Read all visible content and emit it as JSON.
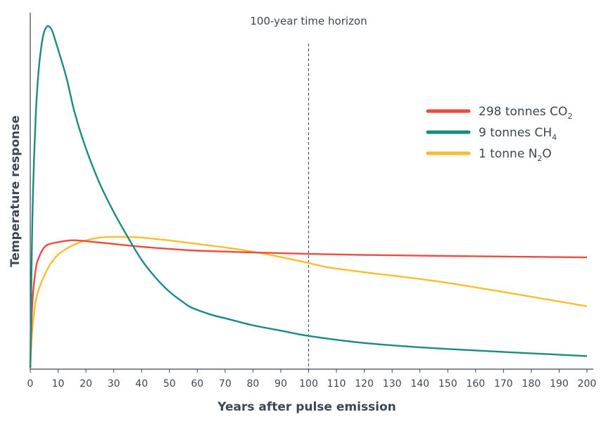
{
  "chart_data": {
    "type": "line",
    "title": "",
    "annotation": "100-year time horizon",
    "annotation_x": 100,
    "xlabel": "Years after pulse emission",
    "ylabel": "Temperature response",
    "xlim": [
      0,
      200
    ],
    "ylim": [
      0,
      100
    ],
    "xticks": [
      0,
      10,
      20,
      30,
      40,
      50,
      60,
      70,
      80,
      90,
      100,
      110,
      120,
      130,
      140,
      150,
      160,
      170,
      180,
      190,
      200
    ],
    "grid": false,
    "legend_position": "top-right",
    "series": [
      {
        "name": "298 tonnes CO",
        "sub": "2",
        "color": "#f04a3e",
        "x": [
          0,
          0.5,
          1,
          2,
          3,
          5,
          7,
          10,
          14,
          17,
          20,
          30,
          40,
          50,
          60,
          80,
          100,
          120,
          150,
          200
        ],
        "y": [
          0,
          14,
          21,
          28,
          31,
          34,
          35,
          35.5,
          36,
          36,
          35.8,
          35,
          34.2,
          33.6,
          33.1,
          32.6,
          32.2,
          31.9,
          31.6,
          31.2
        ]
      },
      {
        "name": "9 tonnes CH",
        "sub": "4",
        "color": "#1a8c7e",
        "x": [
          0,
          0.5,
          1,
          2,
          3,
          4,
          5,
          6,
          6.5,
          7,
          8,
          10,
          13,
          16,
          20,
          25,
          30,
          35,
          40,
          45,
          50,
          55,
          58,
          65,
          70,
          80,
          90,
          100,
          120,
          150,
          200
        ],
        "y": [
          0,
          30,
          50,
          72,
          84,
          91,
          95,
          96.5,
          96.6,
          96.3,
          95,
          90,
          82,
          72,
          62,
          52,
          44,
          37,
          30.5,
          25.5,
          21.5,
          18.5,
          17,
          15,
          14,
          12,
          10.5,
          9,
          7,
          5.3,
          3.3
        ]
      },
      {
        "name": "1 tonne N",
        "sub": "2",
        "suffix": "O",
        "color": "#fbbd2e",
        "x": [
          0,
          0.5,
          1,
          2,
          3,
          5,
          7,
          10,
          15,
          20,
          25,
          30,
          35,
          40,
          50,
          60,
          70,
          80,
          90,
          100,
          107,
          120,
          150,
          200
        ],
        "y": [
          0,
          8,
          13,
          19,
          22,
          26,
          29,
          32,
          34.5,
          36,
          36.8,
          37,
          37,
          36.8,
          36,
          35,
          34,
          32.8,
          31.3,
          29.6,
          28.4,
          27,
          24,
          17.4
        ]
      }
    ]
  }
}
